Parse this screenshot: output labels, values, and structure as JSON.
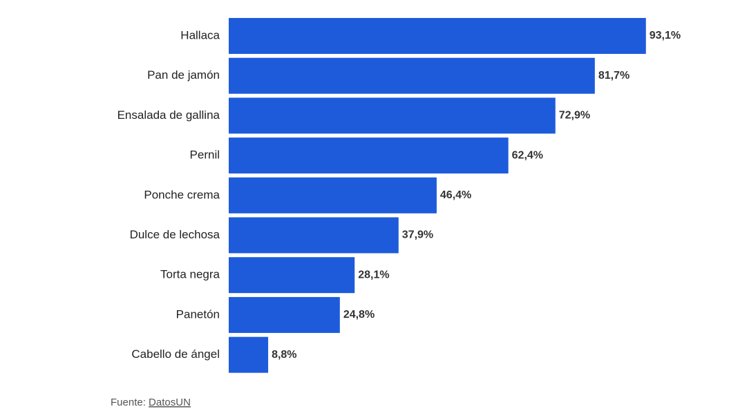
{
  "chart_data": {
    "type": "bar",
    "orientation": "horizontal",
    "categories": [
      "Hallaca",
      "Pan de jamón",
      "Ensalada de gallina",
      "Pernil",
      "Ponche crema",
      "Dulce de lechosa",
      "Torta negra",
      "Panetón",
      "Cabello de ángel"
    ],
    "values": [
      93.1,
      81.7,
      72.9,
      62.4,
      46.4,
      37.9,
      28.1,
      24.8,
      8.8
    ],
    "value_labels": [
      "93,1%",
      "81,7%",
      "72,9%",
      "62,4%",
      "46,4%",
      "37,9%",
      "28,1%",
      "24,8%",
      "8,8%"
    ],
    "unit": "%",
    "bar_color": "#1d5bdb",
    "xlim": [
      0,
      100
    ],
    "grid": false,
    "legend": "none",
    "title": "",
    "xlabel": "",
    "ylabel": ""
  },
  "source": {
    "prefix": "Fuente: ",
    "link_text": "DatosUN"
  }
}
